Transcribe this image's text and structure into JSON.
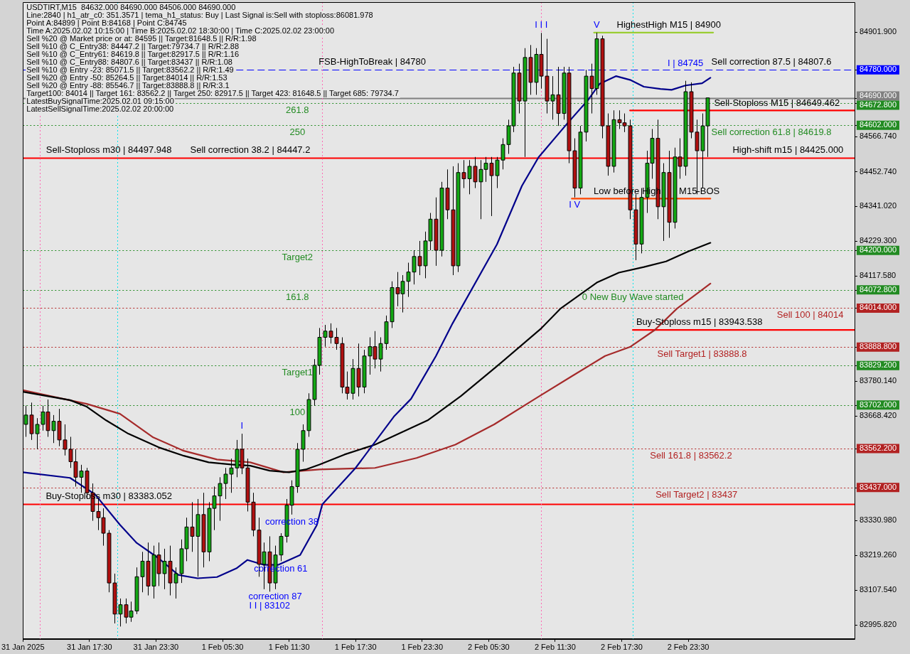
{
  "chart_data": {
    "type": "candlestick",
    "title": "USDTIRT,M15  84632.000 84690.000 84506.000 84690.000",
    "x": [
      "2025-01-31T11:45",
      "2025-01-31T12:15",
      "2025-01-31T12:45",
      "2025-01-31T13:15",
      "2025-01-31T13:45",
      "2025-01-31T14:15",
      "2025-01-31T14:45",
      "2025-01-31T15:15",
      "2025-01-31T15:45",
      "2025-01-31T16:15",
      "2025-01-31T16:45",
      "2025-01-31T17:15",
      "2025-01-31T17:45",
      "2025-01-31T18:15",
      "2025-01-31T18:45",
      "2025-01-31T19:15",
      "2025-01-31T19:45",
      "2025-01-31T20:15",
      "2025-01-31T20:45",
      "2025-01-31T21:15",
      "2025-01-31T21:45",
      "2025-01-31T22:15",
      "2025-01-31T22:45",
      "2025-01-31T23:15",
      "2025-01-31T23:45",
      "2025-02-01T00:15",
      "2025-02-01T00:45",
      "2025-02-01T01:15",
      "2025-02-01T01:45",
      "2025-02-01T02:15",
      "2025-02-01T02:45",
      "2025-02-01T03:15",
      "2025-02-01T03:45",
      "2025-02-01T04:15",
      "2025-02-01T04:45",
      "2025-02-01T05:15",
      "2025-02-01T05:45",
      "2025-02-01T06:15",
      "2025-02-01T06:45",
      "2025-02-01T07:15",
      "2025-02-01T07:45",
      "2025-02-01T08:15",
      "2025-02-01T08:45",
      "2025-02-01T09:15",
      "2025-02-01T09:45",
      "2025-02-01T10:15",
      "2025-02-01T10:45",
      "2025-02-01T11:15",
      "2025-02-01T11:45",
      "2025-02-01T12:15",
      "2025-02-01T12:45",
      "2025-02-01T13:15",
      "2025-02-01T13:45",
      "2025-02-01T14:15",
      "2025-02-01T14:45",
      "2025-02-01T15:15",
      "2025-02-01T15:45",
      "2025-02-01T16:15",
      "2025-02-01T16:45",
      "2025-02-01T17:15",
      "2025-02-01T17:45",
      "2025-02-01T18:15",
      "2025-02-01T18:45",
      "2025-02-01T19:15",
      "2025-02-01T19:45",
      "2025-02-01T20:15",
      "2025-02-01T20:45",
      "2025-02-01T21:15",
      "2025-02-01T21:45",
      "2025-02-01T22:15",
      "2025-02-01T22:45",
      "2025-02-01T23:15",
      "2025-02-01T23:45",
      "2025-02-02T00:15",
      "2025-02-02T00:45",
      "2025-02-02T01:15",
      "2025-02-02T01:45",
      "2025-02-02T02:15",
      "2025-02-02T02:45",
      "2025-02-02T03:15",
      "2025-02-02T03:45",
      "2025-02-02T04:15",
      "2025-02-02T04:45",
      "2025-02-02T05:15",
      "2025-02-02T05:45",
      "2025-02-02T06:15",
      "2025-02-02T06:45",
      "2025-02-02T07:15",
      "2025-02-02T07:45",
      "2025-02-02T08:15",
      "2025-02-02T08:45",
      "2025-02-02T09:15",
      "2025-02-02T09:45",
      "2025-02-02T10:15",
      "2025-02-02T10:45",
      "2025-02-02T11:15",
      "2025-02-02T11:45",
      "2025-02-02T12:15",
      "2025-02-02T12:45",
      "2025-02-02T13:15",
      "2025-02-02T13:45",
      "2025-02-02T14:15",
      "2025-02-02T14:45",
      "2025-02-02T15:15",
      "2025-02-02T15:45",
      "2025-02-02T16:15",
      "2025-02-02T16:45",
      "2025-02-02T17:15",
      "2025-02-02T17:45",
      "2025-02-02T18:15",
      "2025-02-02T18:45",
      "2025-02-02T19:15",
      "2025-02-02T19:45",
      "2025-02-02T20:15",
      "2025-02-02T20:45",
      "2025-02-02T21:15",
      "2025-02-02T21:45",
      "2025-02-02T22:15",
      "2025-02-02T22:45",
      "2025-02-02T23:15",
      "2025-02-02T23:45",
      "2025-02-03T00:15",
      "2025-02-03T00:45",
      "2025-02-03T01:15"
    ],
    "ohlc": [
      [
        83640,
        83700,
        83600,
        83670
      ],
      [
        83670,
        83710,
        83590,
        83610
      ],
      [
        83610,
        83660,
        83560,
        83640
      ],
      [
        83640,
        83700,
        83620,
        83680
      ],
      [
        83680,
        83720,
        83600,
        83620
      ],
      [
        83620,
        83670,
        83580,
        83650
      ],
      [
        83650,
        83690,
        83570,
        83590
      ],
      [
        83590,
        83640,
        83540,
        83560
      ],
      [
        83560,
        83600,
        83500,
        83520
      ],
      [
        83520,
        83560,
        83440,
        83470
      ],
      [
        83470,
        83510,
        83420,
        83490
      ],
      [
        83490,
        83500,
        83400,
        83420
      ],
      [
        83420,
        83450,
        83330,
        83360
      ],
      [
        83360,
        83400,
        83300,
        83340
      ],
      [
        83340,
        83370,
        83250,
        83290
      ],
      [
        83290,
        83300,
        83100,
        83130
      ],
      [
        83130,
        83160,
        83000,
        83030
      ],
      [
        83030,
        83080,
        82990,
        83060
      ],
      [
        83060,
        83080,
        83000,
        83020
      ],
      [
        83020,
        83070,
        83005,
        83040
      ],
      [
        83040,
        83180,
        83030,
        83150
      ],
      [
        83150,
        83230,
        83100,
        83200
      ],
      [
        83200,
        83260,
        83090,
        83120
      ],
      [
        83120,
        83250,
        83080,
        83220
      ],
      [
        83220,
        83260,
        83120,
        83160
      ],
      [
        83160,
        83240,
        83110,
        83200
      ],
      [
        83200,
        83250,
        83090,
        83130
      ],
      [
        83130,
        83180,
        83080,
        83160
      ],
      [
        83160,
        83270,
        83130,
        83240
      ],
      [
        83240,
        83340,
        83200,
        83310
      ],
      [
        83310,
        83390,
        83230,
        83280
      ],
      [
        83280,
        83400,
        83150,
        83350
      ],
      [
        83350,
        83420,
        83180,
        83230
      ],
      [
        83230,
        83390,
        83200,
        83370
      ],
      [
        83370,
        83440,
        83300,
        83410
      ],
      [
        83410,
        83470,
        83330,
        83450
      ],
      [
        83450,
        83500,
        83400,
        83480
      ],
      [
        83480,
        83530,
        83420,
        83500
      ],
      [
        83500,
        83590,
        83470,
        83560
      ],
      [
        83560,
        83610,
        83480,
        83500
      ],
      [
        83500,
        83530,
        83360,
        83390
      ],
      [
        83390,
        83420,
        83280,
        83300
      ],
      [
        83300,
        83340,
        83150,
        83190
      ],
      [
        83190,
        83260,
        83110,
        83230
      ],
      [
        83230,
        83280,
        83102,
        83130
      ],
      [
        83130,
        83250,
        83110,
        83220
      ],
      [
        83220,
        83290,
        83200,
        83280
      ],
      [
        83280,
        83400,
        83260,
        83380
      ],
      [
        83380,
        83460,
        83350,
        83440
      ],
      [
        83440,
        83580,
        83420,
        83560
      ],
      [
        83560,
        83640,
        83520,
        83620
      ],
      [
        83620,
        83740,
        83600,
        83720
      ],
      [
        83720,
        83850,
        83700,
        83830
      ],
      [
        83830,
        83950,
        83800,
        83920
      ],
      [
        83920,
        83960,
        83890,
        83940
      ],
      [
        83940,
        83965,
        83900,
        83920
      ],
      [
        83920,
        83950,
        83880,
        83900
      ],
      [
        83900,
        83920,
        83740,
        83760
      ],
      [
        83760,
        83810,
        83720,
        83740
      ],
      [
        83740,
        83850,
        83720,
        83820
      ],
      [
        83820,
        83900,
        83730,
        83760
      ],
      [
        83760,
        83880,
        83740,
        83860
      ],
      [
        83860,
        83920,
        83800,
        83890
      ],
      [
        83890,
        83940,
        83820,
        83850
      ],
      [
        83850,
        83920,
        83810,
        83900
      ],
      [
        83900,
        83990,
        83880,
        83970
      ],
      [
        83970,
        84100,
        83950,
        84080
      ],
      [
        84080,
        84130,
        84020,
        84060
      ],
      [
        84060,
        84120,
        84000,
        84100
      ],
      [
        84100,
        84160,
        84050,
        84130
      ],
      [
        84130,
        84200,
        84090,
        84180
      ],
      [
        84180,
        84230,
        84120,
        84150
      ],
      [
        84150,
        84260,
        84110,
        84230
      ],
      [
        84230,
        84320,
        84200,
        84300
      ],
      [
        84300,
        84370,
        84150,
        84200
      ],
      [
        84200,
        84420,
        84180,
        84400
      ],
      [
        84400,
        84460,
        84300,
        84330
      ],
      [
        84330,
        84470,
        84120,
        84150
      ],
      [
        84150,
        84480,
        84130,
        84450
      ],
      [
        84450,
        84490,
        84400,
        84430
      ],
      [
        84430,
        84490,
        84380,
        84470
      ],
      [
        84470,
        84500,
        84400,
        84420
      ],
      [
        84420,
        84490,
        84300,
        84460
      ],
      [
        84460,
        84500,
        84420,
        84480
      ],
      [
        84480,
        84500,
        84310,
        84440
      ],
      [
        84440,
        84500,
        84400,
        84490
      ],
      [
        84490,
        84560,
        84460,
        84540
      ],
      [
        84540,
        84620,
        84510,
        84600
      ],
      [
        84600,
        84790,
        84580,
        84770
      ],
      [
        84770,
        84800,
        84640,
        84680
      ],
      [
        84680,
        84850,
        84500,
        84820
      ],
      [
        84820,
        84860,
        84700,
        84740
      ],
      [
        84740,
        84850,
        84700,
        84830
      ],
      [
        84830,
        84899,
        84720,
        84760
      ],
      [
        84760,
        84880,
        84640,
        84680
      ],
      [
        84680,
        84760,
        84620,
        84700
      ],
      [
        84700,
        84790,
        84600,
        84640
      ],
      [
        84640,
        84790,
        84620,
        84770
      ],
      [
        84770,
        84790,
        84480,
        84520
      ],
      [
        84520,
        84560,
        84370,
        84400
      ],
      [
        84400,
        84600,
        84380,
        84580
      ],
      [
        84580,
        84780,
        84550,
        84760
      ],
      [
        84760,
        84800,
        84640,
        84720
      ],
      [
        84720,
        84900,
        84700,
        84880
      ],
      [
        84880,
        84890,
        84560,
        84600
      ],
      [
        84600,
        84640,
        84440,
        84470
      ],
      [
        84470,
        84650,
        84450,
        84620
      ],
      [
        84620,
        84650,
        84590,
        84610
      ],
      [
        84610,
        84640,
        84580,
        84600
      ],
      [
        84600,
        84620,
        84300,
        84330
      ],
      [
        84330,
        84380,
        84168,
        84220
      ],
      [
        84220,
        84400,
        84190,
        84370
      ],
      [
        84370,
        84520,
        84320,
        84480
      ],
      [
        84480,
        84590,
        84430,
        84560
      ],
      [
        84560,
        84620,
        84300,
        84340
      ],
      [
        84340,
        84480,
        84230,
        84450
      ],
      [
        84450,
        84520,
        84240,
        84290
      ],
      [
        84290,
        84530,
        84270,
        84500
      ],
      [
        84500,
        84560,
        84430,
        84470
      ],
      [
        84470,
        84745,
        84440,
        84710
      ],
      [
        84710,
        84740,
        84560,
        84580
      ],
      [
        84580,
        84620,
        84380,
        84520
      ],
      [
        84520,
        84640,
        84400,
        84600
      ],
      [
        84600,
        84690,
        84500,
        84690
      ]
    ],
    "colors": [
      "#13a813",
      "#b01010",
      "#13a813",
      "#13a813",
      "#b01010",
      "#13a813",
      "#b01010",
      "#b01010",
      "#b01010",
      "#b01010",
      "#13a813",
      "#b01010",
      "#b01010",
      "#b01010",
      "#b01010",
      "#b01010",
      "#b01010",
      "#13a813",
      "#b01010",
      "#13a813",
      "#13a813",
      "#13a813",
      "#b01010",
      "#13a813",
      "#b01010",
      "#13a813",
      "#b01010",
      "#13a813",
      "#13a813",
      "#13a813",
      "#b01010",
      "#13a813",
      "#b01010",
      "#13a813",
      "#13a813",
      "#13a813",
      "#13a813",
      "#13a813",
      "#13a813",
      "#b01010",
      "#b01010",
      "#b01010",
      "#b01010",
      "#13a813",
      "#b01010",
      "#13a813",
      "#13a813",
      "#13a813",
      "#13a813",
      "#13a813",
      "#13a813",
      "#13a813",
      "#13a813",
      "#13a813",
      "#13a813",
      "#b01010",
      "#b01010",
      "#b01010",
      "#b01010",
      "#13a813",
      "#b01010",
      "#13a813",
      "#13a813",
      "#b01010",
      "#13a813",
      "#13a813",
      "#13a813",
      "#b01010",
      "#13a813",
      "#13a813",
      "#13a813",
      "#b01010",
      "#13a813",
      "#13a813",
      "#b01010",
      "#13a813",
      "#b01010",
      "#b01010",
      "#13a813",
      "#b01010",
      "#13a813",
      "#b01010",
      "#13a813",
      "#13a813",
      "#b01010",
      "#13a813",
      "#13a813",
      "#13a813",
      "#13a813",
      "#b01010",
      "#13a813",
      "#b01010",
      "#13a813",
      "#b01010",
      "#b01010",
      "#13a813",
      "#b01010",
      "#13a813",
      "#b01010",
      "#b01010",
      "#13a813",
      "#13a813",
      "#b01010",
      "#13a813",
      "#b01010",
      "#b01010",
      "#13a813",
      "#b01010",
      "#b01010",
      "#b01010",
      "#b01010",
      "#13a813",
      "#13a813",
      "#13a813",
      "#b01010",
      "#13a813",
      "#b01010",
      "#13a813",
      "#b01010",
      "#13a813",
      "#b01010",
      "#b01010",
      "#13a813",
      "#13a813"
    ],
    "series": [
      {
        "type": "line",
        "color": "#00008b",
        "x": [
          "2025-01-31T11:30",
          "2025-01-31T15:45",
          "2025-01-31T18:00",
          "2025-01-31T20:15",
          "2025-01-31T21:45",
          "2025-01-31T23:45",
          "2025-02-01T01:30",
          "2025-02-01T03:15",
          "2025-02-01T05:00",
          "2025-02-01T06:45",
          "2025-02-01T07:45",
          "2025-02-01T09:15",
          "2025-02-01T10:30",
          "2025-02-01T12:30",
          "2025-02-01T14:00",
          "2025-02-01T14:30",
          "2025-02-01T17:30",
          "2025-02-01T21:00",
          "2025-02-01T22:30",
          "2025-02-02T00:45",
          "2025-02-02T02:15",
          "2025-02-02T06:15",
          "2025-02-02T08:30",
          "2025-02-02T10:00",
          "2025-02-02T12:30",
          "2025-02-02T14:30",
          "2025-02-02T15:30",
          "2025-02-02T17:00",
          "2025-02-02T18:15",
          "2025-02-02T19:30",
          "2025-02-02T21:00",
          "2025-02-02T22:00",
          "2025-02-02T23:15",
          "2025-02-03T00:45",
          "2025-02-03T01:30"
        ],
        "values": [
          83486,
          83468,
          83415,
          83317,
          83259,
          83209,
          83156,
          83145,
          83149,
          83177,
          83204,
          83188,
          83188,
          83220,
          83316,
          83383,
          83500,
          83667,
          83722,
          83860,
          83965,
          84219,
          84407,
          84499,
          84604,
          84685,
          84735,
          84760,
          84748,
          84726,
          84719,
          84716,
          84730,
          84737,
          84755
        ]
      },
      {
        "type": "line",
        "color": "#000000",
        "x": [
          "2025-01-31T11:30",
          "2025-01-31T15:45",
          "2025-01-31T17:15",
          "2025-01-31T19:00",
          "2025-01-31T21:00",
          "2025-01-31T23:45",
          "2025-02-01T02:00",
          "2025-02-01T04:15",
          "2025-02-01T06:15",
          "2025-02-01T08:00",
          "2025-02-01T09:45",
          "2025-02-01T11:30",
          "2025-02-01T13:00",
          "2025-02-01T14:15",
          "2025-02-01T16:30",
          "2025-02-01T19:15",
          "2025-02-02T00:00",
          "2025-02-02T03:00",
          "2025-02-02T06:15",
          "2025-02-02T10:15",
          "2025-02-02T12:00",
          "2025-02-02T15:15",
          "2025-02-02T17:15",
          "2025-02-02T19:30",
          "2025-02-02T21:30",
          "2025-02-02T23:30",
          "2025-02-03T01:30"
        ],
        "values": [
          83745,
          83718,
          83697,
          83653,
          83610,
          83566,
          83539,
          83518,
          83511,
          83507,
          83491,
          83486,
          83495,
          83511,
          83543,
          83575,
          83653,
          83731,
          83827,
          83949,
          84013,
          84096,
          84128,
          84146,
          84164,
          84196,
          84224
        ]
      },
      {
        "type": "line",
        "color": "#a52a2a",
        "x": [
          "2025-01-31T11:30",
          "2025-01-31T14:15",
          "2025-01-31T17:15",
          "2025-01-31T20:15",
          "2025-01-31T23:15",
          "2025-02-01T02:00",
          "2025-02-01T05:00",
          "2025-02-01T08:00",
          "2025-02-01T11:00",
          "2025-02-01T14:15",
          "2025-02-01T19:15",
          "2025-02-01T23:00",
          "2025-02-02T02:30",
          "2025-02-02T06:00",
          "2025-02-02T09:30",
          "2025-02-02T13:00",
          "2025-02-02T16:00",
          "2025-02-02T18:15",
          "2025-02-02T20:30",
          "2025-02-02T22:30",
          "2025-02-03T00:30",
          "2025-02-03T01:30"
        ],
        "values": [
          83750,
          83729,
          83706,
          83674,
          83598,
          83555,
          83527,
          83518,
          83486,
          83495,
          83500,
          83532,
          83575,
          83640,
          83718,
          83795,
          83860,
          83889,
          83944,
          84013,
          84066,
          84093
        ]
      },
      {
        "type": "line",
        "color": "#ff0000",
        "x": [
          "2025-02-02T18:15",
          "2025-02-03T14:30"
        ],
        "values": [
          84649.462,
          84649.462
        ]
      },
      {
        "type": "line",
        "color": "#ff0000",
        "x": [
          "2025-02-02T18:30",
          "2025-02-03T14:30"
        ],
        "values": [
          83943.538,
          83943.538
        ]
      },
      {
        "type": "line",
        "color": "#ff4500",
        "x": [
          "2025-02-02T13:00",
          "2025-02-03T01:30"
        ],
        "values": [
          84366,
          84366
        ]
      },
      {
        "type": "line",
        "color": "#9acd32",
        "x": [
          "2025-02-02T15:00",
          "2025-02-03T01:45"
        ],
        "values": [
          84900,
          84900
        ]
      }
    ],
    "xlim": [
      "2025-01-31T11:30",
      "2025-02-03T14:30"
    ],
    "xticks": [
      {
        "value": "2025-01-31T11:30",
        "label": "31 Jan 2025"
      },
      {
        "value": "2025-01-31T17:30",
        "label": "31 Jan 17:30"
      },
      {
        "value": "2025-01-31T23:30",
        "label": "31 Jan 23:30"
      },
      {
        "value": "2025-02-01T05:30",
        "label": "1 Feb 05:30"
      },
      {
        "value": "2025-02-01T11:30",
        "label": "1 Feb 11:30"
      },
      {
        "value": "2025-02-01T17:30",
        "label": "1 Feb 17:30"
      },
      {
        "value": "2025-02-01T23:30",
        "label": "1 Feb 23:30"
      },
      {
        "value": "2025-02-02T05:30",
        "label": "2 Feb 05:30"
      },
      {
        "value": "2025-02-02T11:30",
        "label": "2 Feb 11:30"
      },
      {
        "value": "2025-02-02T17:30",
        "label": "2 Feb 17:30"
      },
      {
        "value": "2025-02-02T23:30",
        "label": "2 Feb 23:30"
      }
    ],
    "ylim": [
      82950,
      84998
    ],
    "yticks": [
      {
        "value": 84901.9,
        "label": "84901.900"
      },
      {
        "value": 84780,
        "label": "84780.000"
      },
      {
        "value": 84690,
        "label": "84690.000"
      },
      {
        "value": 84672.8,
        "label": "84672.800"
      },
      {
        "value": 84602,
        "label": "84602.000"
      },
      {
        "value": 84566.74,
        "label": "84566.740"
      },
      {
        "value": 84452.74,
        "label": "84452.740"
      },
      {
        "value": 84341.02,
        "label": "84341.020"
      },
      {
        "value": 84229.3,
        "label": "84229.300"
      },
      {
        "value": 84200,
        "label": "84200.000"
      },
      {
        "value": 84117.58,
        "label": "84117.580"
      },
      {
        "value": 84072.8,
        "label": "84072.800"
      },
      {
        "value": 84014,
        "label": "84014.000"
      },
      {
        "value": 83888.8,
        "label": "83888.800"
      },
      {
        "value": 83829.2,
        "label": "83829.200"
      },
      {
        "value": 83780.14,
        "label": "83780.140"
      },
      {
        "value": 83702,
        "label": "83702.000"
      },
      {
        "value": 83668.42,
        "label": "83668.420"
      },
      {
        "value": 83562.2,
        "label": "83562.200"
      },
      {
        "value": 83437,
        "label": "83437.000"
      },
      {
        "value": 83330.98,
        "label": "83330.980"
      },
      {
        "value": 83219.26,
        "label": "83219.260"
      },
      {
        "value": 83107.54,
        "label": "83107.540"
      },
      {
        "value": 82995.82,
        "label": "82995.820"
      }
    ],
    "ref_lines": [
      {
        "axis": "y",
        "value": 84780,
        "color": "#0000ff",
        "line_style": "dashed"
      },
      {
        "axis": "y",
        "value": 84690,
        "color": "#808080",
        "line_style": "solid"
      },
      {
        "axis": "y",
        "value": 84672.8,
        "color": "#228b22",
        "line_style": "dotted"
      },
      {
        "axis": "y",
        "value": 84602,
        "color": "#228b22",
        "line_style": "dotted"
      },
      {
        "axis": "y",
        "value": 84497.948,
        "color": "#ff0000",
        "line_style": "solid"
      },
      {
        "axis": "y",
        "value": 84200,
        "color": "#228b22",
        "line_style": "dotted"
      },
      {
        "axis": "y",
        "value": 84072.8,
        "color": "#228b22",
        "line_style": "dotted"
      },
      {
        "axis": "y",
        "value": 84014,
        "color": "#b22222",
        "line_style": "dotted"
      },
      {
        "axis": "y",
        "value": 83888.8,
        "color": "#b22222",
        "line_style": "dotted"
      },
      {
        "axis": "y",
        "value": 83829.2,
        "color": "#228b22",
        "line_style": "dotted"
      },
      {
        "axis": "y",
        "value": 83702,
        "color": "#228b22",
        "line_style": "dotted"
      },
      {
        "axis": "y",
        "value": 83562.2,
        "color": "#b22222",
        "line_style": "dotted"
      },
      {
        "axis": "y",
        "value": 83437,
        "color": "#b22222",
        "line_style": "dotted"
      },
      {
        "axis": "y",
        "value": 83383.052,
        "color": "#ff0000",
        "line_style": "solid"
      },
      {
        "axis": "x",
        "value": "2025-01-31T13:00",
        "color": "#ff69b4",
        "line_style": "dotted"
      },
      {
        "axis": "x",
        "value": "2025-01-31T20:00",
        "color": "#00e5ee",
        "line_style": "dotted"
      },
      {
        "axis": "x",
        "value": "2025-02-01T14:30",
        "color": "#ff69b4",
        "line_style": "dotted"
      },
      {
        "axis": "x",
        "value": "2025-02-02T10:15",
        "color": "#ff69b4",
        "line_style": "dotted"
      },
      {
        "axis": "x",
        "value": "2025-02-02T18:30",
        "color": "#00e5ee",
        "line_style": "dotted"
      }
    ],
    "marker": "none",
    "annotations": [
      "Line:2840 | h1_atr_c0: 351.3571 | tema_h1_status: Buy | Last Signal is:Sell with stoploss:86081.978",
      "Point A:84899 | Point B:84168 | Point C:84745",
      "Time A:2025.02.02 10:15:00 | Time B:2025.02.02 18:30:00 | Time C:2025.02.02 23:00:00",
      "Sell %20 @ Market price or at: 84595 || Target:81648.5 || R/R:1.98",
      "Sell %10 @ C_Entry38: 84447.2 || Target:79734.7 || R/R:2.88",
      "Sell %10 @ C_Entry61: 84619.8 || Target:82917.5 || R/R:1.16",
      "Sell %10 @ C_Entry88: 84807.6 || Target:83437 || R/R:1.08",
      "Sell %10 @ Entry -23: 85071.5 || Target:83562.2 || R/R:1.49",
      "Sell %20 @ Entry -50: 85264.5 || Target:84014 || R/R:1.53",
      "Sell %20 @ Entry -88: 85546.7 || Target:83888.8 || R/R:3.1",
      "Target100: 84014 || Target 161: 83562.2 || Target 250: 82917.5 || Target 423: 81648.5 || Target 685: 79734.7",
      "LatestBuySignalTime:2025.02.01 09:15:00",
      "LatestSellSignalTime:2025.02.02 20:00:00",
      {
        "text": "FSB-HighToBreak | 84780",
        "x": "2025-02-01T19:00",
        "y": 84780
      },
      {
        "text": "Sell-Stoploss m30 | 84497.948",
        "x": "2025-01-31T19:15",
        "y": 84497.948
      },
      {
        "text": "Buy-Stoploss m30 | 83383.052",
        "x": "2025-01-31T19:15",
        "y": 83383.052
      },
      {
        "text": "261.8",
        "x": "2025-02-01T12:15",
        "y": 84672.8
      },
      {
        "text": "250",
        "x": "2025-02-01T12:15",
        "y": 84602
      },
      {
        "text": "Target2",
        "x": "2025-02-01T12:15",
        "y": 84200
      },
      {
        "text": "161.8",
        "x": "2025-02-01T12:15",
        "y": 84072.8
      },
      {
        "text": "Target1",
        "x": "2025-02-01T12:15",
        "y": 83829.2
      },
      {
        "text": "100",
        "x": "2025-02-01T12:15",
        "y": 83702
      },
      {
        "text": "Sell 100 | 84014",
        "x": "2025-02-03T10:30",
        "y": 84014
      },
      {
        "text": "Sell Target1 | 83888.8",
        "x": "2025-02-03T00:45",
        "y": 83888.8
      },
      {
        "text": "Sell 161.8 | 83562.2",
        "x": "2025-02-02T23:45",
        "y": 83562.2
      },
      {
        "text": "Sell Target2 | 83437",
        "x": "2025-02-03T00:15",
        "y": 83437
      },
      {
        "text": "Sell-Stoploss M15 | 84649.462",
        "x": "2025-02-03T07:30",
        "y": 84649.462
      },
      {
        "text": "Buy-Stoploss m15 | 83943.538",
        "x": "2025-02-03T00:30",
        "y": 83943.538
      },
      {
        "text": "HighestHigh M15 | 84900",
        "x": "2025-02-02T21:45",
        "y": 84900
      },
      {
        "text": "Low before High",
        "x": "2025-02-02T18:00",
        "y": 84366
      },
      {
        "text": "M15-BOS",
        "x": "2025-02-03T00:30",
        "y": 84366
      },
      {
        "text": "High-shift m15 | 84425.000",
        "x": "2025-02-03T08:30",
        "y": 84497.948
      },
      {
        "text": "Sell correction 87.5 | 84807.6",
        "x": "2025-02-03T07:00",
        "y": 84780
      },
      {
        "text": "Sell correction 61.8 | 84619.8",
        "x": "2025-02-03T07:00",
        "y": 84602
      },
      {
        "text": "Sell correction 38.2 | 84447.2",
        "x": "2025-02-01T08:00",
        "y": 84497.948
      },
      {
        "text": "0 New Buy Wave started",
        "x": "2025-02-02T18:30",
        "y": 84072.8
      },
      {
        "text": "I",
        "x": "2025-02-01T07:15",
        "y": 83610
      },
      {
        "text": "correction 87",
        "x": "2025-02-01T10:15",
        "y": 83110
      },
      {
        "text": "I I | 83102",
        "x": "2025-02-01T09:45",
        "y": 83102
      },
      {
        "text": "I I I",
        "x": "2025-02-02T10:15",
        "y": 84899
      },
      {
        "text": "I V",
        "x": "2025-02-02T13:15",
        "y": 84370
      },
      {
        "text": "V",
        "x": "2025-02-02T15:15",
        "y": 84900
      },
      {
        "text": "I | 84745",
        "x": "2025-02-02T23:15",
        "y": 84745
      },
      {
        "text": "correction 38",
        "x": "2025-02-01T11:45",
        "y": 83350
      },
      {
        "text": "correction 61",
        "x": "2025-02-01T10:45",
        "y": 83200
      }
    ]
  }
}
